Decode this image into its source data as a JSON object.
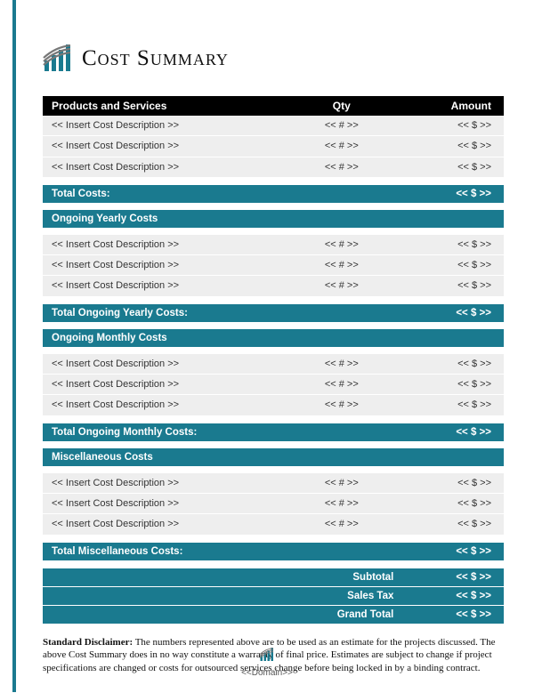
{
  "colors": {
    "accent": "#1a7a8f",
    "header_bg": "#000000",
    "row_bg": "#eeeeee",
    "page_bg": "#ffffff",
    "text": "#111111"
  },
  "title": "Cost Summary",
  "table": {
    "headers": {
      "products": "Products and Services",
      "qty": "Qty",
      "amount": "Amount"
    },
    "sections": [
      {
        "name": null,
        "items": [
          {
            "desc": "<< Insert Cost Description >>",
            "qty": "<< # >>",
            "amount": "<< $ >>"
          },
          {
            "desc": "<< Insert Cost Description >>",
            "qty": "<< # >>",
            "amount": "<< $ >>"
          },
          {
            "desc": "<< Insert Cost Description >>",
            "qty": "<< # >>",
            "amount": "<< $ >>"
          }
        ],
        "total_label": "Total Costs:",
        "total_amount": "<< $ >>"
      },
      {
        "name": "Ongoing Yearly Costs",
        "items": [
          {
            "desc": "<< Insert Cost Description >>",
            "qty": "<< # >>",
            "amount": "<< $ >>"
          },
          {
            "desc": "<< Insert Cost Description >>",
            "qty": "<< # >>",
            "amount": "<< $ >>"
          },
          {
            "desc": "<< Insert Cost Description >>",
            "qty": "<< # >>",
            "amount": "<< $ >>"
          }
        ],
        "total_label": "Total Ongoing Yearly Costs:",
        "total_amount": "<< $ >>"
      },
      {
        "name": "Ongoing Monthly Costs",
        "items": [
          {
            "desc": "<< Insert Cost Description >>",
            "qty": "<< # >>",
            "amount": "<< $ >>"
          },
          {
            "desc": "<< Insert Cost Description >>",
            "qty": "<< # >>",
            "amount": "<< $ >>"
          },
          {
            "desc": "<< Insert Cost Description >>",
            "qty": "<< # >>",
            "amount": "<< $ >>"
          }
        ],
        "total_label": "Total Ongoing Monthly Costs:",
        "total_amount": "<< $ >>"
      },
      {
        "name": "Miscellaneous Costs",
        "items": [
          {
            "desc": "<< Insert Cost Description >>",
            "qty": "<< # >>",
            "amount": "<< $ >>"
          },
          {
            "desc": "<< Insert Cost Description >>",
            "qty": "<< # >>",
            "amount": "<< $ >>"
          },
          {
            "desc": "<< Insert Cost Description >>",
            "qty": "<< # >>",
            "amount": "<< $ >>"
          }
        ],
        "total_label": "Total Miscellaneous Costs:",
        "total_amount": "<< $ >>"
      }
    ],
    "summary": [
      {
        "label": "Subtotal",
        "amount": "<< $ >>"
      },
      {
        "label": "Sales Tax",
        "amount": "<< $ >>"
      },
      {
        "label": "Grand Total",
        "amount": "<< $ >>"
      }
    ]
  },
  "disclaimer": {
    "lead": "Standard Disclaimer:",
    "body": "The numbers represented above are to be used as an estimate for the projects discussed. The above Cost Summary does in no way constitute a warranty of final price.  Estimates are subject to change if project specifications are changed or costs for outsourced services change before being locked in by a binding contract."
  },
  "footer": "<<Domain>>"
}
